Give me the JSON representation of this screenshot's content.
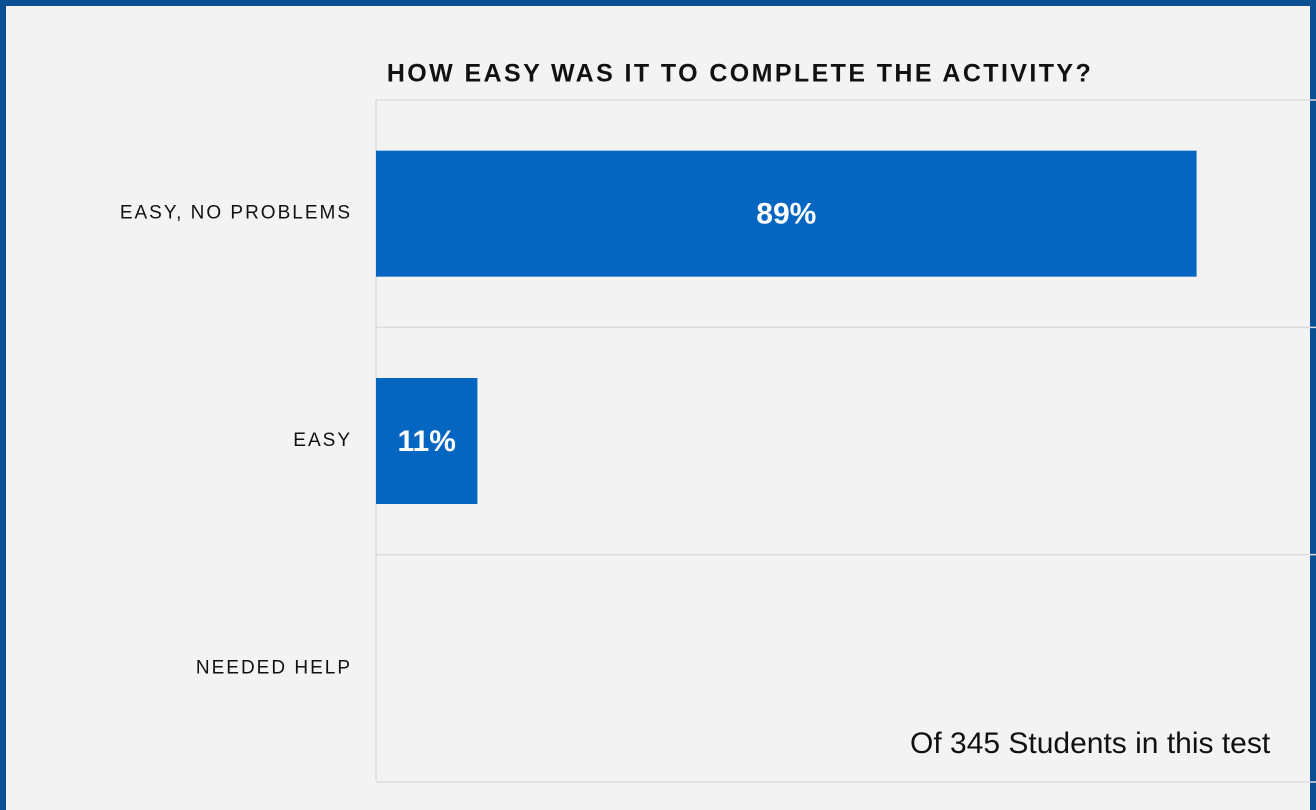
{
  "chart_data": {
    "type": "bar",
    "orientation": "horizontal",
    "title": "HOW EASY WAS IT TO  COMPLETE THE ACTIVITY?",
    "categories": [
      "EASY, NO PROBLEMS",
      "EASY",
      "NEEDED HELP"
    ],
    "values": [
      89,
      11,
      0
    ],
    "value_labels": [
      "89%",
      "11%",
      null
    ],
    "color": "#0566c1",
    "xlim": [
      0,
      100
    ],
    "annotation": "Of 345 Students in this test"
  }
}
